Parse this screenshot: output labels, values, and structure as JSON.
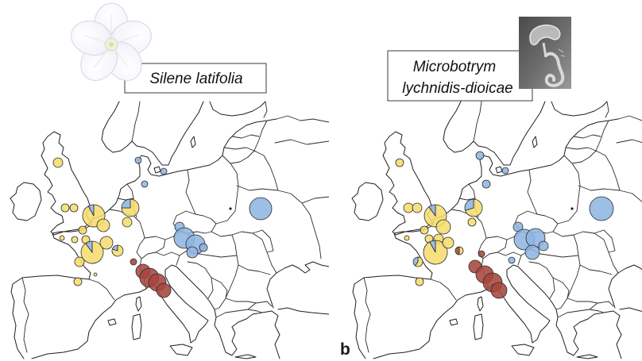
{
  "figure_label": "b",
  "cluster_colors": {
    "yellow": "#f5dc6e",
    "blue": "#8fb5e1",
    "red": "#a5473d"
  },
  "left_panel": {
    "species_label": "Silene latifolia",
    "photo_icon": "white-flower-icon",
    "pies": [
      {
        "yellow": 1
      },
      {
        "yellow": 1
      },
      {
        "yellow": 1
      },
      {
        "yellow": 0.92,
        "blue": 0.08
      },
      {
        "yellow": 1
      },
      {
        "yellow": 0.75,
        "blue": 0.25
      },
      {
        "yellow": 1
      },
      {
        "yellow": 1
      },
      {
        "yellow": 1
      },
      {
        "yellow": 1
      },
      {
        "yellow": 1
      },
      {
        "yellow": 0.9,
        "blue": 0.1
      },
      {
        "yellow": 1
      },
      {
        "yellow": 0.8,
        "blue": 0.2
      },
      {
        "yellow": 1
      },
      {
        "yellow": 1
      },
      {
        "yellow": 1
      },
      {
        "blue": 1
      },
      {
        "blue": 1
      },
      {
        "blue": 1
      },
      {
        "blue": 1
      },
      {
        "blue": 1
      },
      {
        "blue": 1
      },
      {
        "blue": 1
      },
      {
        "blue": 1
      },
      {
        "blue": 1
      },
      {
        "red": 1
      },
      {
        "red": 1
      },
      {
        "red": 1
      },
      {
        "red": 1
      },
      {
        "red": 1
      }
    ]
  },
  "right_panel": {
    "species_label_lines": [
      "Microbotrym",
      "lychnidis-dioicae"
    ],
    "photo_icon": "fungal-spore-micrograph-icon",
    "pies": [
      {
        "yellow": 1
      },
      {
        "yellow": 1
      },
      {
        "yellow": 1
      },
      {
        "yellow": 0.9,
        "blue": 0.1
      },
      {
        "yellow": 1
      },
      {
        "yellow": 0.7,
        "blue": 0.3
      },
      {
        "yellow": 1
      },
      {
        "yellow": 1
      },
      {
        "yellow": 1
      },
      {
        "yellow": 1
      },
      {
        "yellow": 1
      },
      {
        "yellow": 0.92,
        "blue": 0.08
      },
      {
        "yellow": 1
      },
      {
        "yellow": 0.5,
        "red": 0.5
      },
      {
        "yellow": 0.6,
        "blue": 0.4
      },
      {
        "yellow": 1
      },
      {
        "blue": 1
      },
      {
        "blue": 1
      },
      {
        "blue": 1
      },
      {
        "blue": 1
      },
      {
        "blue": 1
      },
      {
        "blue": 1
      },
      {
        "blue": 1
      },
      {
        "blue": 1
      },
      {
        "blue": 1
      },
      {
        "blue": 1
      },
      {
        "red": 1
      },
      {
        "red": 1
      },
      {
        "red": 1
      },
      {
        "red": 1
      },
      {
        "red": 1
      }
    ]
  }
}
